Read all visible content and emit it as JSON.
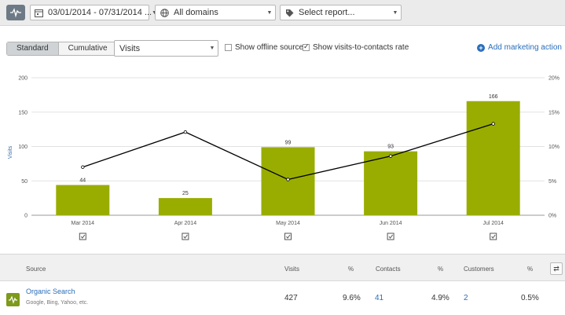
{
  "filters": {
    "date_range": "03/01/2014 - 07/31/2014 ...",
    "domains": "All domains",
    "report": "Select report..."
  },
  "controls": {
    "standard": "Standard",
    "cumulative": "Cumulative",
    "metric": "Visits",
    "offline": "Show offline sources",
    "visits_rate": "Show visits-to-contacts rate",
    "add_action": "Add marketing action"
  },
  "chart_data": {
    "type": "bar",
    "categories": [
      "Mar 2014",
      "Apr 2014",
      "May 2014",
      "Jun 2014",
      "Jul 2014"
    ],
    "series": [
      {
        "name": "Visits",
        "type": "bar",
        "values": [
          44,
          25,
          99,
          93,
          166
        ]
      },
      {
        "name": "Visits-to-contacts rate",
        "type": "line",
        "axis": "right",
        "values": [
          7.0,
          12.1,
          5.2,
          8.6,
          13.3
        ]
      }
    ],
    "ylabel": "Visits",
    "ylim": [
      0,
      200
    ],
    "yticks": [
      "0",
      "50",
      "100",
      "150",
      "200"
    ],
    "y2lim": [
      0,
      20
    ],
    "y2ticks": [
      "0%",
      "5%",
      "10%",
      "15%",
      "20%"
    ],
    "bar_color": "#99ad00",
    "line_color": "#000000"
  },
  "table": {
    "headers": {
      "source": "Source",
      "visits": "Visits",
      "pct1": "%",
      "contacts": "Contacts",
      "pct2": "%",
      "customers": "Customers",
      "pct3": "%"
    },
    "rows": [
      {
        "source": "Organic Search",
        "sub": "Google, Bing, Yahoo, etc.",
        "visits": "427",
        "pct1": "9.6%",
        "contacts": "41",
        "pct2": "4.9%",
        "customers": "2",
        "pct3": "0.5%"
      }
    ]
  }
}
